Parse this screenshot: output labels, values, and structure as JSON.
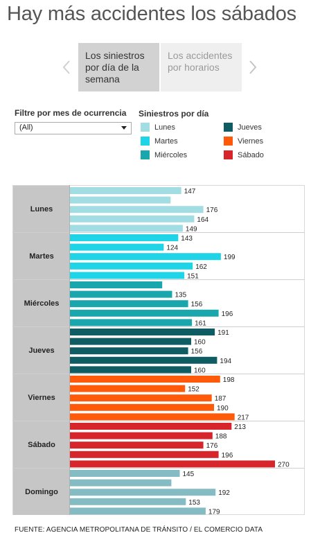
{
  "title": "Hay más accidentes los sábados",
  "tabs": [
    {
      "label": "Los siniestros por día de la semana",
      "active": true
    },
    {
      "label": "Los accidentes por horarios",
      "active": false
    }
  ],
  "filter": {
    "label": "Filtre por mes de ocurrencia",
    "value": "(All)"
  },
  "legend": {
    "title": "Siniestros por día",
    "items": [
      {
        "label": "Lunes",
        "color": "#a3dde4"
      },
      {
        "label": "Jueves",
        "color": "#0f5c63"
      },
      {
        "label": "Martes",
        "color": "#1ed4e6"
      },
      {
        "label": "Viernes",
        "color": "#ff5a0a"
      },
      {
        "label": "Miércoles",
        "color": "#19a6ac"
      },
      {
        "label": "Sábado",
        "color": "#d7262b"
      }
    ]
  },
  "chart_data": {
    "type": "bar",
    "orientation": "horizontal",
    "xlim": [
      0,
      290
    ],
    "grid": false,
    "groups": [
      {
        "name": "Lunes",
        "color": "#a3dde4",
        "values": [
          147,
          133,
          176,
          164,
          149
        ],
        "labels": [
          "147",
          "",
          "176",
          "164",
          "149"
        ]
      },
      {
        "name": "Martes",
        "color": "#1ed4e6",
        "values": [
          143,
          124,
          199,
          162,
          151
        ],
        "labels": [
          "143",
          "124",
          "199",
          "162",
          "151"
        ]
      },
      {
        "name": "Miércoles",
        "color": "#19a6ac",
        "values": [
          122,
          135,
          156,
          196,
          161
        ],
        "labels": [
          "",
          "135",
          "156",
          "196",
          "161"
        ]
      },
      {
        "name": "Jueves",
        "color": "#0f5c63",
        "values": [
          191,
          160,
          156,
          194,
          160
        ],
        "labels": [
          "191",
          "160",
          "156",
          "194",
          "160"
        ]
      },
      {
        "name": "Viernes",
        "color": "#ff5a0a",
        "values": [
          198,
          152,
          187,
          190,
          217
        ],
        "labels": [
          "198",
          "152",
          "187",
          "190",
          "217"
        ]
      },
      {
        "name": "Sábado",
        "color": "#d7262b",
        "values": [
          213,
          188,
          176,
          196,
          270
        ],
        "labels": [
          "213",
          "188",
          "176",
          "196",
          "270"
        ]
      },
      {
        "name": "Domingo",
        "color": "#85bcc4",
        "values": [
          145,
          134,
          192,
          153,
          179
        ],
        "labels": [
          "145",
          "",
          "192",
          "153",
          "179"
        ]
      }
    ]
  },
  "source": "FUENTE: AGENCIA METROPOLITANA DE TRÁNSITO / EL COMERCIO DATA"
}
